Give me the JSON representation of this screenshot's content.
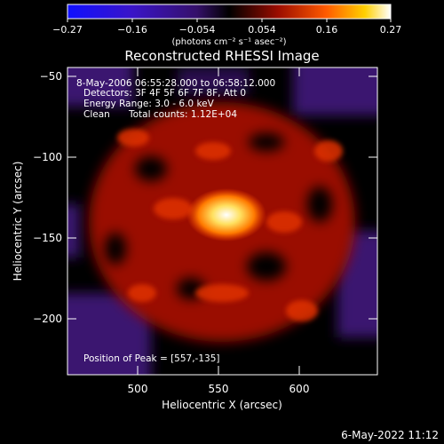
{
  "colorbar": {
    "ticks": [
      "−0.27",
      "−0.16",
      "−0.054",
      "0.054",
      "0.16",
      "0.27"
    ],
    "unit_label": "(photons cm⁻² s⁻¹ asec⁻²)"
  },
  "title": "Reconstructed RHESSI Image",
  "info": {
    "time_range": "8-May-2006 06:55:28.000 to 06:58:12.000",
    "detectors": "Detectors: 3F 4F 5F 6F 7F 8F, Att 0",
    "energy_range": "Energy Range: 3.0 - 6.0 keV",
    "clean": "Clean",
    "total_counts": "Total counts: 1.12E+04",
    "peak": "Position of Peak = [557,-135]"
  },
  "axes": {
    "xlabel": "Heliocentric X (arcsec)",
    "ylabel": "Heliocentric Y (arcsec)",
    "x_ticks": [
      "500",
      "550",
      "600"
    ],
    "y_ticks": [
      "−50",
      "−100",
      "−150",
      "−200"
    ]
  },
  "footer_timestamp": "6-May-2022 11:12",
  "colors": {
    "background": "#000000",
    "colormap": [
      "#0000ff",
      "#3c00a0",
      "#000000",
      "#a00000",
      "#ff5000",
      "#ffd000",
      "#ffffff"
    ]
  }
}
